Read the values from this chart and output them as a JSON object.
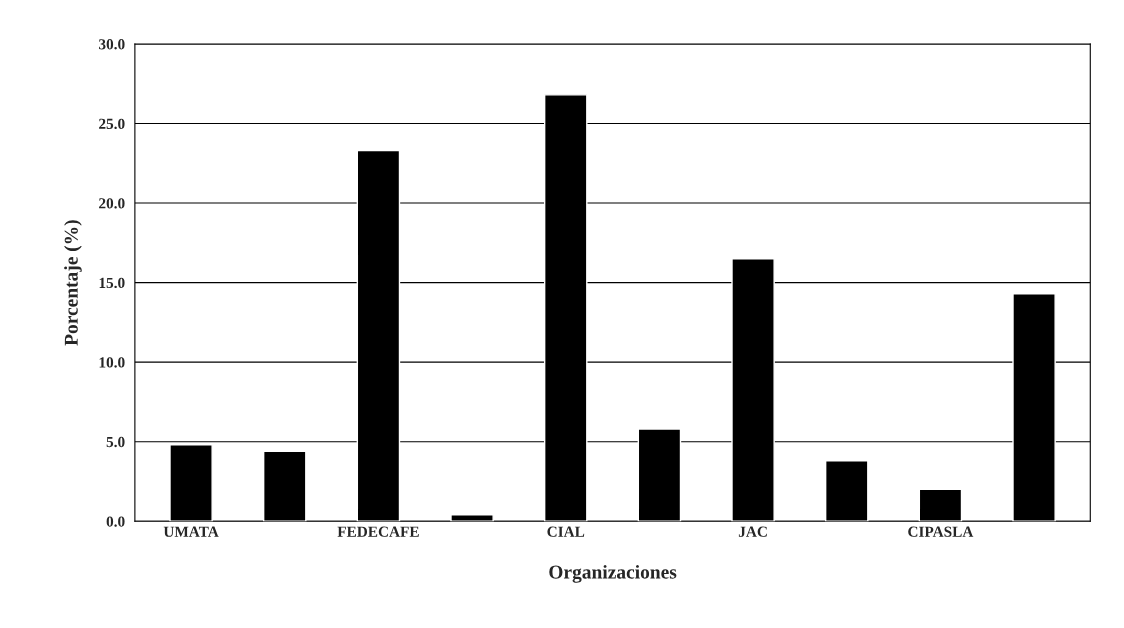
{
  "chart_data": {
    "type": "bar",
    "xlabel": "Organizaciones",
    "ylabel": "Porcentaje (%)",
    "categories": [
      "UMATA",
      null,
      "FEDECAFE",
      null,
      "CIAL",
      null,
      "JAC",
      null,
      "CIPASLA",
      null
    ],
    "values": [
      4.8,
      4.4,
      23.3,
      0.4,
      26.8,
      5.8,
      16.5,
      3.8,
      2.0,
      14.3
    ],
    "color": "#000000",
    "ylim": [
      0,
      30
    ],
    "yticks": [
      {
        "value": 0,
        "label": "0.0"
      },
      {
        "value": 5,
        "label": "5.0"
      },
      {
        "value": 10,
        "label": "10.0"
      },
      {
        "value": 15,
        "label": "15.0"
      },
      {
        "value": 20,
        "label": "20.0"
      },
      {
        "value": 25,
        "label": "25.0"
      },
      {
        "value": 30,
        "label": "30.0"
      }
    ],
    "grid": "y"
  }
}
